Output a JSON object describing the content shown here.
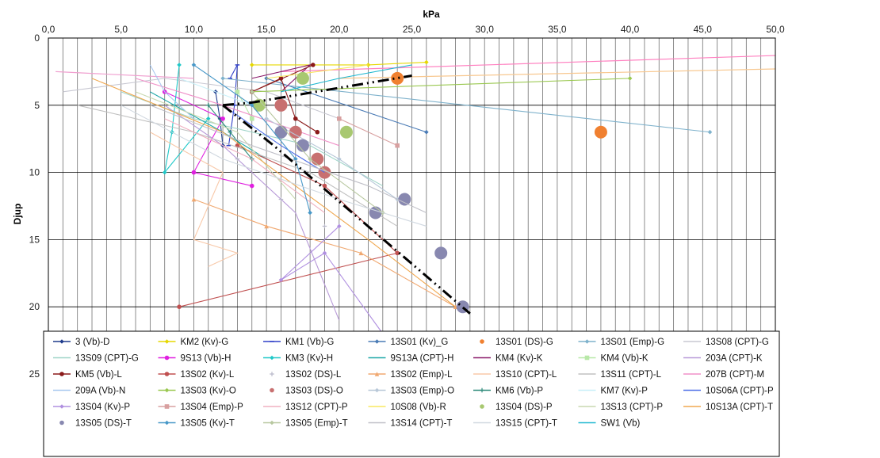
{
  "chart_data": {
    "type": "scatter",
    "title": "",
    "xlabel": "kPa",
    "ylabel": "Djup",
    "xlim": [
      0,
      50
    ],
    "ylim": [
      0,
      25
    ],
    "y_inverted": true,
    "x_axis_position": "top",
    "grid": true,
    "legend_placement": "bottom",
    "x_ticks": [
      "0,0",
      "5,0",
      "10,0",
      "15,0",
      "20,0",
      "25,0",
      "30,0",
      "35,0",
      "40,0",
      "45,0",
      "50,0"
    ],
    "y_ticks": [
      "0",
      "5",
      "10",
      "15",
      "20",
      "25"
    ],
    "series": [
      {
        "name": "3 (Vb)-D",
        "color": "#1f3c8c",
        "marker": "diamond",
        "style": "line",
        "points": [
          [
            11.5,
            4
          ],
          [
            11.8,
            6
          ],
          [
            12,
            8
          ]
        ]
      },
      {
        "name": "KM2 (Kv)-G",
        "color": "#e6d800",
        "marker": "diamond",
        "style": "line",
        "points": [
          [
            14,
            2
          ],
          [
            22,
            2
          ],
          [
            26,
            1.8
          ]
        ]
      },
      {
        "name": "KM1 (Vb)-G",
        "color": "#3040c8",
        "marker": "dash",
        "style": "line",
        "points": [
          [
            12.5,
            3
          ],
          [
            13,
            2
          ],
          [
            12.8,
            5
          ],
          [
            12.4,
            8
          ]
        ]
      },
      {
        "name": "13S01 (Kv)_G",
        "color": "#4a7bb5",
        "marker": "diamond",
        "style": "line",
        "points": [
          [
            15,
            3
          ],
          [
            26,
            7
          ]
        ]
      },
      {
        "name": "13S01 (DS)-G",
        "color": "#f08030",
        "marker": "circle",
        "style": "points",
        "points": [
          [
            24,
            3
          ],
          [
            38,
            7
          ]
        ]
      },
      {
        "name": "13S01 (Emp)-G",
        "color": "#7fb2cc",
        "marker": "diamond",
        "style": "line",
        "points": [
          [
            12,
            3
          ],
          [
            45.5,
            7
          ]
        ]
      },
      {
        "name": "13S08 (CPT)-G",
        "color": "#c8c8d2",
        "marker": "none",
        "style": "line",
        "points": [
          [
            1,
            4
          ],
          [
            8,
            3
          ],
          [
            15,
            4
          ],
          [
            20,
            6
          ]
        ]
      },
      {
        "name": "13S09 (CPT)-G",
        "color": "#9fd4c8",
        "marker": "none",
        "style": "line",
        "points": [
          [
            5,
            4
          ],
          [
            10,
            6
          ],
          [
            18,
            8
          ],
          [
            23,
            11
          ]
        ]
      },
      {
        "name": "9S13 (Vb)-H",
        "color": "#e020e0",
        "marker": "circle",
        "style": "line",
        "points": [
          [
            8,
            4
          ],
          [
            12,
            6
          ],
          [
            10,
            10
          ],
          [
            14,
            11
          ]
        ]
      },
      {
        "name": "KM3 (Kv)-H",
        "color": "#20c8c8",
        "marker": "diamond",
        "style": "line",
        "points": [
          [
            9,
            2
          ],
          [
            8.5,
            7
          ],
          [
            8,
            10
          ],
          [
            11,
            6
          ]
        ]
      },
      {
        "name": "9S13A (CPT)-H",
        "color": "#20a8a8",
        "marker": "none",
        "style": "line",
        "points": [
          [
            7,
            4
          ],
          [
            12,
            7
          ],
          [
            15,
            9
          ]
        ]
      },
      {
        "name": "KM4 (Kv)-K",
        "color": "#8a1a6a",
        "marker": "none",
        "style": "line",
        "points": [
          [
            14,
            3
          ],
          [
            18,
            2
          ],
          [
            16,
            4
          ]
        ]
      },
      {
        "name": "KM4 (Vb)-K",
        "color": "#b8e8a8",
        "marker": "square",
        "style": "line",
        "points": [
          [
            13,
            4
          ],
          [
            14,
            6
          ]
        ]
      },
      {
        "name": "203A (CPT)-K",
        "color": "#b89ad8",
        "marker": "none",
        "style": "line",
        "points": [
          [
            8,
            5
          ],
          [
            12,
            8
          ],
          [
            17,
            13
          ],
          [
            20,
            21
          ]
        ]
      },
      {
        "name": "KM5 (Vb)-L",
        "color": "#8b1a1a",
        "marker": "circle",
        "style": "line",
        "points": [
          [
            18.2,
            2
          ],
          [
            14,
            4
          ],
          [
            16,
            3
          ],
          [
            17,
            6
          ],
          [
            18.5,
            7
          ]
        ]
      },
      {
        "name": "13S02 (Kv)-L",
        "color": "#c05050",
        "marker": "circle",
        "style": "line",
        "points": [
          [
            13,
            8
          ],
          [
            19,
            11
          ],
          [
            24,
            16
          ],
          [
            9,
            20
          ]
        ]
      },
      {
        "name": "13S02 (DS)-L",
        "color": "#b8b8c8",
        "marker": "plus",
        "style": "points",
        "points": [
          [
            11,
            5
          ],
          [
            13,
            9
          ],
          [
            16,
            12
          ],
          [
            19,
            14
          ]
        ]
      },
      {
        "name": "13S02 (Emp)-L",
        "color": "#f0a870",
        "marker": "triangle",
        "style": "line",
        "points": [
          [
            10,
            12
          ],
          [
            15,
            14
          ],
          [
            21.5,
            16
          ],
          [
            28,
            20
          ]
        ]
      },
      {
        "name": "13S10 (CPT)-L",
        "color": "#f8c8a8",
        "marker": "none",
        "style": "line",
        "points": [
          [
            7,
            7
          ],
          [
            12,
            10
          ],
          [
            10,
            15
          ],
          [
            13,
            16
          ],
          [
            11,
            17
          ]
        ]
      },
      {
        "name": "13S11 (CPT)-L",
        "color": "#c0c0c0",
        "marker": "none",
        "style": "line",
        "points": [
          [
            2,
            5
          ],
          [
            10,
            7
          ],
          [
            18,
            10
          ],
          [
            24,
            14
          ]
        ]
      },
      {
        "name": "207B (CPT)-M",
        "color": "#f090c8",
        "marker": "none",
        "style": "line",
        "points": [
          [
            6,
            3
          ],
          [
            12,
            5
          ],
          [
            20,
            8
          ]
        ]
      },
      {
        "name": "209A (Vb)-N",
        "color": "#a8c8f0",
        "marker": "none",
        "style": "line",
        "points": [
          [
            7,
            2
          ],
          [
            8,
            4
          ],
          [
            10,
            6
          ]
        ]
      },
      {
        "name": "13S03 (Kv)-O",
        "color": "#9ac850",
        "marker": "diamond",
        "style": "line",
        "points": [
          [
            14,
            4
          ],
          [
            40,
            3
          ]
        ]
      },
      {
        "name": "13S03 (DS)-O",
        "color": "#c87070",
        "marker": "circle",
        "style": "points",
        "points": [
          [
            16,
            5
          ],
          [
            17,
            7
          ],
          [
            18.5,
            9
          ],
          [
            19,
            10
          ]
        ]
      },
      {
        "name": "13S03 (Emp)-O",
        "color": "#b8c8d8",
        "marker": "diamond",
        "style": "line",
        "points": [
          [
            15,
            6
          ],
          [
            20,
            9
          ],
          [
            24,
            12
          ]
        ]
      },
      {
        "name": "KM6 (Vb)-P",
        "color": "#2e8b7a",
        "marker": "plus",
        "style": "line",
        "points": [
          [
            11,
            5
          ],
          [
            12.5,
            7
          ],
          [
            14,
            9
          ]
        ]
      },
      {
        "name": "KM7 (Kv)-P",
        "color": "#c8f0f8",
        "marker": "none",
        "style": "line",
        "points": [
          [
            9,
            3
          ],
          [
            14,
            5
          ]
        ]
      },
      {
        "name": "10S06A (CPT)-P",
        "color": "#5070e8",
        "marker": "none",
        "style": "line",
        "points": [
          [
            12,
            5
          ],
          [
            16,
            8
          ],
          [
            19,
            10
          ]
        ]
      },
      {
        "name": "13S04 (Kv)-P",
        "color": "#b090e0",
        "marker": "diamond",
        "style": "line",
        "points": [
          [
            20,
            14
          ],
          [
            16,
            18
          ],
          [
            19,
            16
          ],
          [
            23,
            22
          ]
        ]
      },
      {
        "name": "13S04 (Emp)-P",
        "color": "#d8a0a0",
        "marker": "square",
        "style": "line",
        "points": [
          [
            20,
            6
          ],
          [
            24,
            8
          ]
        ]
      },
      {
        "name": "13S12 (CPT)-P",
        "color": "#f0b0c0",
        "marker": "none",
        "style": "line",
        "points": [
          [
            8,
            6
          ],
          [
            14,
            9
          ],
          [
            19,
            13
          ]
        ]
      },
      {
        "name": "10S08 (Vb)-R",
        "color": "#f8e860",
        "marker": "none",
        "style": "line",
        "points": [
          [
            15,
            3
          ],
          [
            22,
            2
          ]
        ]
      },
      {
        "name": "13S04 (DS)-P",
        "color": "#a8c870",
        "marker": "circle",
        "style": "points",
        "points": [
          [
            17.5,
            3
          ],
          [
            14.5,
            5
          ],
          [
            20.5,
            7
          ]
        ]
      },
      {
        "name": "13S13 (CPT)-P",
        "color": "#c8d8b0",
        "marker": "none",
        "style": "line",
        "points": [
          [
            6,
            4
          ],
          [
            13,
            7
          ],
          [
            17,
            12
          ]
        ]
      },
      {
        "name": "10S13A (CPT)-T",
        "color": "#f0a850",
        "marker": "none",
        "style": "line",
        "points": [
          [
            3,
            3
          ],
          [
            12,
            7
          ],
          [
            22,
            15
          ],
          [
            28,
            20
          ]
        ]
      },
      {
        "name": "13S05 (DS)-T",
        "color": "#8888b0",
        "marker": "circle",
        "style": "points",
        "points": [
          [
            16,
            7
          ],
          [
            17.5,
            8
          ],
          [
            22.5,
            13
          ],
          [
            24.5,
            12
          ],
          [
            27,
            16
          ],
          [
            28.5,
            20
          ]
        ]
      },
      {
        "name": "13S05 (Kv)-T",
        "color": "#4898c8",
        "marker": "diamond",
        "style": "line",
        "points": [
          [
            10,
            2
          ],
          [
            14,
            5
          ],
          [
            17,
            9
          ],
          [
            18,
            13
          ]
        ]
      },
      {
        "name": "13S05 (Emp)-T",
        "color": "#b8c8a0",
        "marker": "diamond",
        "style": "line",
        "points": [
          [
            14,
            4
          ],
          [
            18,
            9
          ],
          [
            23,
            13
          ]
        ]
      },
      {
        "name": "13S14 (CPT)-T",
        "color": "#c0c0c8",
        "marker": "none",
        "style": "line",
        "points": [
          [
            7,
            5
          ],
          [
            14,
            8
          ],
          [
            22,
            11
          ],
          [
            26,
            13
          ]
        ]
      },
      {
        "name": "13S15 (CPT)-T",
        "color": "#d0d8e0",
        "marker": "none",
        "style": "line",
        "points": [
          [
            5,
            5
          ],
          [
            12,
            9
          ],
          [
            20,
            12
          ],
          [
            26,
            14
          ]
        ]
      },
      {
        "name": "SW1 (Vb)",
        "color": "#20b8d0",
        "marker": "none",
        "style": "line",
        "points": [
          [
            25,
            2
          ],
          [
            20,
            3
          ],
          [
            16,
            4
          ]
        ]
      }
    ],
    "extra_lines": [
      {
        "color": "#ff80c0",
        "points": [
          [
            16,
            2.5
          ],
          [
            50,
            1.3
          ]
        ]
      },
      {
        "color": "#f8c890",
        "points": [
          [
            20,
            3
          ],
          [
            50,
            2.3
          ]
        ]
      },
      {
        "color": "#f0a0d0",
        "points": [
          [
            0.5,
            2.5
          ],
          [
            10,
            3
          ]
        ]
      }
    ],
    "trend_lines": [
      {
        "style": "dash-dot-dot",
        "color": "#000000",
        "points": [
          [
            12,
            5
          ],
          [
            14,
            4.8
          ],
          [
            25,
            2.8
          ]
        ]
      },
      {
        "style": "dash-dot-dot",
        "color": "#000000",
        "points": [
          [
            12,
            5
          ],
          [
            15.5,
            8
          ],
          [
            29,
            20.5
          ]
        ]
      }
    ]
  }
}
